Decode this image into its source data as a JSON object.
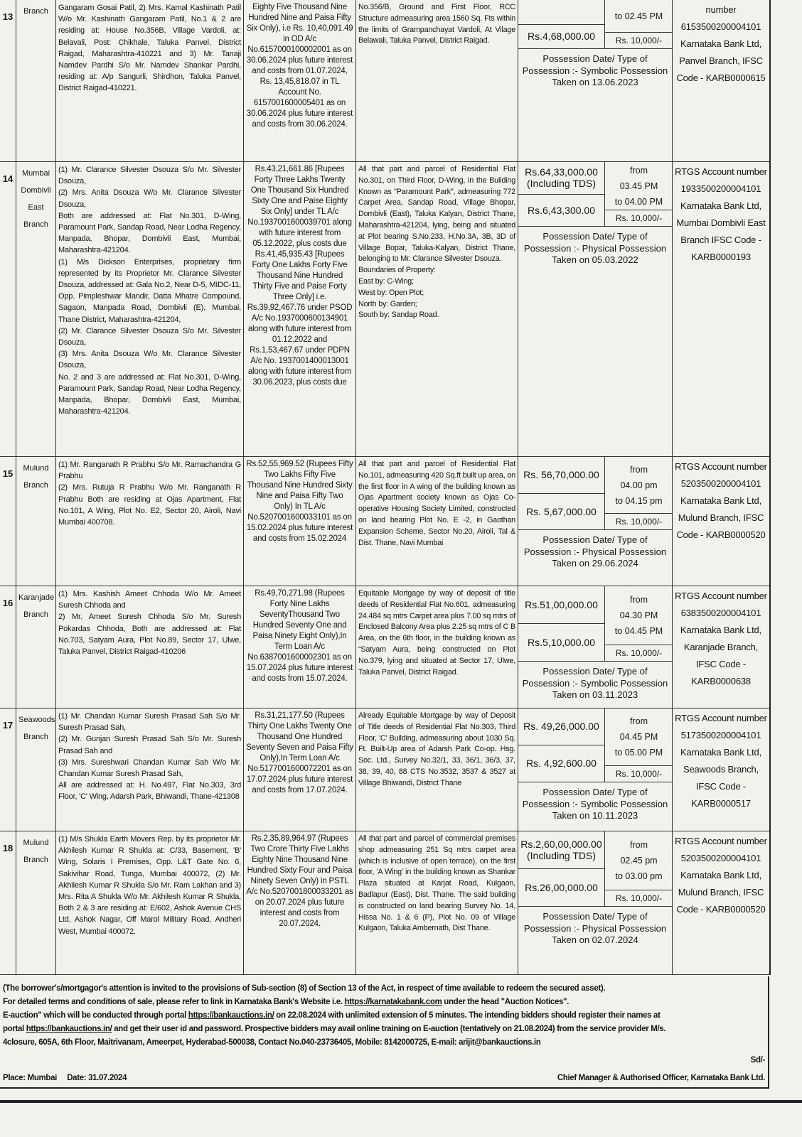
{
  "rows": [
    {
      "sr": "13",
      "branch": "Branch",
      "borrower": "Gangaram Gosai Patil, 2) Mrs. Kamal Kashinath Patil W/o Mr. Kashinath Gangaram Patil, No.1 & 2 are residing at: House No.356B, Village Vardoli, at: Belavali, Post: Chikhale, Taluka Panvel, District Raigad, Maharashtra-410221 and 3) Mr. Tanaji Namdev Pardhi S/o Mr. Namdev Shankar Pardhi, residing at: A/p Sangurli, Shirdhon, Taluka Panvel, District Raigad-410221.",
      "dues": "Eighty Five Thousand Nine Hundred Nine and Paisa Fifty Six Only), i.e Rs. 10,40,091.49 in OD A/c No.6157000100002001 as on 30.06.2024 plus future interest and costs from 01.07.2024, Rs. 13,45,818.07 in TL Account No. 6157001600005401 as on 30.06.2024 plus future interest and costs from 30.06.2024.",
      "property": "No.356/B, Ground and First Floor, RCC Structure admeasuring area 1560 Sq. Fts within the limits of Grampanchayat Vardoli, At Vilage Belawali, Taluka Panvel, District Raigad.",
      "reserve": "",
      "reserve_note": "",
      "emd": "Rs.4,68,000.00",
      "time_from_label": "",
      "time_from": "",
      "time_to": "to 02.45 PM",
      "bid_increment": "Rs. 10,000/-",
      "possession": "Possession Date/ Type of Possession :- Symbolic Possession Taken on 13.06.2023",
      "rtgs": "number 6153500200004101 Karnataka Bank Ltd, Panvel Branch, IFSC Code - KARB0000615"
    },
    {
      "sr": "14",
      "branch": "Mumbai Dombivli East Branch",
      "borrower": "(1) Mr. Clarance Silvester Dsouza S/o Mr. Silvester Dsouza,\n(2) Mrs. Anita Dsouza W/o Mr. Clarance Silvester Dsouza,\nBoth are addressed at: Flat No.301, D-Wing, Paramount Park, Sandap Road, Near Lodha Regency, Manpada, Bhopar, Dombivli East, Mumbai, Maharashtra-421204.\n(1) M/s Dickson Enterprises, proprietary firm represented by its Proprietor Mr. Clarance Silvester Dsouza, addressed at: Gala No.2, Near D-5, MIDC-11, Opp. Pimpleshwar Mandir, Datta Mhatre Compound, Sagaon, Manpada Road, Dombivli (E), Mumbai, Thane District, Maharashtra-421204,\n(2) Mr. Clarance Silvester Dsouza S/o Mr. Silvester Dsouza,\n(3) Mrs. Anita Dsouza W/o Mr. Clarance Silvester Dsouza,\nNo. 2 and 3 are addressed at: Flat No.301, D-Wing, Paramount Park, Sandap Road, Near Lodha Regency, Manpada, Bhopar, Dombivli East, Mumbai, Maharashtra-421204.",
      "dues": "Rs.43,21,661.86 [Rupees Forty Three Lakhs Twenty One Thousand Six Hundred Sixty One and Paise Eighty Six Only] under TL A/c No.1937001600039701 along with future interest from 05.12.2022, plus costs due Rs.41,45,935.43 [Rupees Forty One Lakhs Forty Five Thousand Nine Hundred Thirty Five and Paise Forty Three Only] i.e. Rs.39,92,467.76 under PSOD A/c No.1937000600134901 along with future interest from 01.12.2022 and Rs.1,53,467.67 under PDPN A/c No. 1937001400013001 along with future interest from 30.06.2023, plus costs due",
      "property": "All that part and parcel of Residential Flat No.301, on Third Floor, D-Wing, in the Building Known as \"Paramount Park\", admeasuring 772 Carpet Area, Sandap Road, Village Bhopar, Dombivli (East), Taluka Kalyan, District Thane, Maharashtra-421204, lying, being and situated at Plot bearing S.No.233, H.No.3A, 3B, 3D of Village Bopar, Taluka-Kalyan, District Thane, belonging to Mr. Clarance Silvester Dsouza.\nBoundaries of Property:\nEast by: C-Wing;\nWest by: Open Plot;\nNorth by: Garden;\nSouth by: Sandap Road.",
      "reserve": "Rs.64,33,000.00",
      "reserve_note": "(Including TDS)",
      "emd": "Rs.6,43,300.00",
      "time_from_label": "from",
      "time_from": "03.45 PM",
      "time_to": "to 04.00 PM",
      "bid_increment": "Rs. 10,000/-",
      "possession": "Possession Date/ Type of Possession :- Physical Possession Taken on 05.03.2022",
      "rtgs": "RTGS Account number 1933500200004101 Karnataka Bank Ltd, Mumbai Dombivli East Branch IFSC Code - KARB0000193"
    },
    {
      "sr": "15",
      "branch": "Mulund Branch",
      "borrower": "(1) Mr. Ranganath R Prabhu S/o Mr. Ramachandra G Prabhu\n(2) Mrs. Rutuja R Prabhu W/o Mr. Ranganath R Prabhu Both are residing at Ojas Apartment, Flat No.101, A Wing, Plot No. E2, Sector 20, Airoli, Navi Mumbai 400708.",
      "dues": "Rs.52,55,969.52 (Rupees Fifty Two Lakhs Fifty Five Thousand Nine Hundred Sixty Nine and Paisa Fifty Two Only) In TL A/c No.5207001600033101 as on 15.02.2024 plus future interest and costs from 15.02.2024",
      "property": "All that part and parcel of Residential Flat No.101, admeasuring 420 Sq.ft built up area, on the first floor in A wing of the building known as Ojas Apartment society known as Ojas Co-operative Housing Society Limited, constructed on land bearing Plot No. E -2, in Gaothan Expansion Scheme, Sector No.20, Airoli, Tal & Dist. Thane, Navi Mumbai",
      "reserve": "Rs. 56,70,000.00",
      "reserve_note": "",
      "emd": "Rs. 5,67,000.00",
      "time_from_label": "from",
      "time_from": "04.00 pm",
      "time_to": "to 04.15 pm",
      "bid_increment": "Rs. 10,000/-",
      "possession": "Possession Date/ Type of Possession :- Physical Possession Taken on 29.06.2024",
      "rtgs": "RTGS Account number 5203500200004101 Karnataka Bank Ltd, Mulund Branch, IFSC Code - KARB0000520"
    },
    {
      "sr": "16",
      "branch": "Karanjade Branch",
      "borrower": "(1) Mrs. Kashish Ameet Chhoda W/o Mr. Ameet Suresh Chhoda and\n2) Mr. Ameet Suresh Chhoda S/o Mr. Suresh Pokardas Chhoda, Both are addressed at: Flat No.703, Satyam Aura, Plot No.89, Sector 17, Ulwe, Taluka Panvel, District Raigad-410206",
      "dues": "Rs.49,70,271.98 (Rupees Forty Nine Lakhs SeventyThousand Two Hundred Seventy One and Paisa Ninety Eight Only),In Term Loan A/c No.6387001600002301 as on 15.07.2024 plus future interest and costs from 15.07.2024.",
      "property": "Equitable Mortgage by way of deposit of title deeds of Residential Flat No.601, admeasuring 24.484 sq mtrs Carpet area plus 7.00 sq mtrs of Enclosed Balcony Area plus 2.25 sq mtrs of C B Area, on the 6th floor, in the building known as “Satyam Aura, being constructed on Plot No.379, lying and situated at Sector 17, Ulwe, Taluka Panvel, District Raigad.",
      "reserve": "Rs.51,00,000.00",
      "reserve_note": "",
      "emd": "Rs.5,10,000.00",
      "time_from_label": "from",
      "time_from": "04.30 PM",
      "time_to": "to 04.45 PM",
      "bid_increment": "Rs. 10,000/-",
      "possession": "Possession Date/ Type of Possession :- Symbolic Possession Taken on 03.11.2023",
      "rtgs": "RTGS Account number 6383500200004101 Karnataka Bank Ltd, Karanjade Branch, IFSC Code - KARB0000638"
    },
    {
      "sr": "17",
      "branch": "Seawoods Branch",
      "borrower": "(1) Mr. Chandan Kumar Suresh Prasad Sah S/o Mr. Suresh Prasad Sah,\n(2) Mr. Gunjan Suresh Prasad Sah S/o Mr. Suresh Prasad Sah and\n(3) Mrs. Sureshwari Chandan Kumar Sah W/o Mr. Chandan Kumar Suresh Prasad Sah,\nAll are addressed at: H. No.497, Flat No.303, 3rd Floor, 'C' Wing, Adarsh Park, Bhiwandi, Thane-421308",
      "dues": "Rs.31,21,177.50 (Rupees Thirty One Lakhs Twenty One Thousand One Hundred Seventy Seven and Paisa Fifty Only),In Term Loan A/c No.5177001600072201 as on 17.07.2024 plus future interest and costs from 17.07.2024.",
      "property": "Already Equitable Mortgage by way of Deposit of Title deeds of Residential Flat No.303, Third Floor, 'C' Building, admeasuring about 1030 Sq. Ft. Built-Up area of Adarsh Park Co-op. Hsg. Soc. Ltd., Survey No.32/1, 33, 36/1, 36/3, 37, 38, 39, 40, 88 CTS No.3532, 3537 & 3527 at Village Bhiwandi, District Thane",
      "reserve": "Rs. 49,26,000.00",
      "reserve_note": "",
      "emd": "Rs. 4,92,600.00",
      "time_from_label": "from",
      "time_from": "04.45 PM",
      "time_to": "to 05.00 PM",
      "bid_increment": "Rs. 10,000/-",
      "possession": "Possession Date/ Type of Possession :- Symbolic Possession Taken on 10.11.2023",
      "rtgs": "RTGS Account number 5173500200004101 Karnataka Bank Ltd, Seawoods Branch, IFSC Code - KARB0000517"
    },
    {
      "sr": "18",
      "branch": "Mulund Branch",
      "borrower": "(1) M/s Shukla Earth Movers Rep. by its proprietor Mr. Akhilesh Kumar R Shukla at: C/33, Basement, 'B' Wing, Solaris I Premises, Opp. L&T Gate No. 6, Sakivihar Road, Tunga, Mumbai 400072, (2) Mr. Akhilesh Kumar R Shukla S/o Mr. Ram Lakhan and 3) Mrs. Rita A Shukla W/o Mr. Akhilesh Kumar R Shukla, Both 2 & 3 are residing at: E/602, Ashok Avenue CHS Ltd, Ashok Nagar, Off Marol Military Road, Andheri West, Mumbai 400072.",
      "dues": "Rs.2,35,89,964.97 (Rupees Two Crore Thirty Five Lakhs Eighty Nine Thousand Nine Hundred Sixty Four and Paisa Ninety Seven Only) in PSTL A/c No.5207001800033201 as on 20.07.2024 plus future interest and costs from 20.07.2024.",
      "property": "All that part and parcel of commercial premises shop admeasuring 251 Sq mtrs carpet area (which is inclusive of open terrace), on the first floor, 'A Wing' in the building known as Shankar Plaza situated at Karjat Road, Kulgaon, Badlapur (East), Dist. Thane. The said building is constructed on land bearing Survey No. 14, Hissa No. 1 & 6 (P), Plot No. 09 of Village Kulgaon, Taluka Ambernath, Dist Thane.",
      "reserve": "Rs.2,60,00,000.00",
      "reserve_note": "(Including TDS)",
      "emd": "Rs.26,00,000.00",
      "time_from_label": "from",
      "time_from": "02.45 pm",
      "time_to": "to 03.00 pm",
      "bid_increment": "Rs. 10,000/-",
      "possession": "Possession Date/ Type of Possession :- Physical Possession Taken on 02.07.2024",
      "rtgs": "RTGS Account number 5203500200004101 Karnataka Bank Ltd, Mulund Branch, IFSC Code - KARB0000520"
    }
  ],
  "footer": {
    "line1": "(The borrower's/mortgagor's attention is invited to the provisions of Sub-section (8) of Section 13 of the Act, in respect of time available to redeem the secured asset).",
    "line2_pre": "For detailed terms and conditions of sale, please refer to link in Karnataka Bank's Website i.e. ",
    "line2_link": "https://karnatakabank.com",
    "line2_post": " under the head \"Auction Notices\".",
    "line3_pre": "E-auction\" which will be conducted through portal ",
    "line3_link": "https://bankauctions.in/",
    "line3_post": " on 22.08.2024 with unlimited extension of 5  minutes. The intending bidders should register their names at",
    "line4_pre": "portal ",
    "line4_link": "https://bankauctions.in/",
    "line4_post": " and get their user id and password. Prospective bidders may avail online training on E-auction (tentatively on 21.08.2024) from the service provider M/s.",
    "line5": "4closure, 605A, 6th Floor, Maitrivanam, Ameerpet, Hyderabad-500038, Contact No.040-23736405, Mobile: 8142000725, E-mail: arijit@bankauctions.in",
    "sd": "Sd/-",
    "place": "Place: Mumbai",
    "date": "Date: 31.07.2024",
    "signatory": "Chief Manager & Authorised Officer,  Karnataka Bank Ltd."
  }
}
